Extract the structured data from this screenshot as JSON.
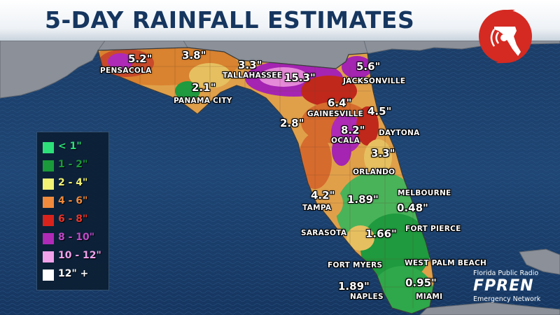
{
  "title": "5-DAY RAINFALL ESTIMATES",
  "colors": {
    "ocean": "#1d3f6a",
    "land_gray": "#8a9099",
    "header_text": "#16365f",
    "rain_green_light": "#2ea84a",
    "rain_green_dark": "#178a34",
    "rain_yellow": "#e3c95a",
    "rain_orange": "#d07a3a",
    "rain_red": "#c0281c",
    "rain_purple": "#a524b2",
    "rain_pink": "#e88ad6"
  },
  "legend": [
    {
      "label": "< 1\"",
      "color": "#2ee07a"
    },
    {
      "label": "1 - 2\"",
      "color": "#1a9a3a"
    },
    {
      "label": "2 - 4\"",
      "color": "#f2f274"
    },
    {
      "label": "4 - 6\"",
      "color": "#f08a3c"
    },
    {
      "label": "6 - 8\"",
      "color": "#d8231c"
    },
    {
      "label": "8 - 10\"",
      "color": "#b02ab8"
    },
    {
      "label": "10 - 12\"",
      "color": "#f1a2ea"
    },
    {
      "label": "12\" +",
      "color": "#ffffff"
    }
  ],
  "rainfall_values": [
    {
      "id": "pensacola",
      "value": "5.2\""
    },
    {
      "id": "n-panhandle",
      "value": "3.8\""
    },
    {
      "id": "tallahassee",
      "value": "3.3\""
    },
    {
      "id": "panama-city",
      "value": "2.1\""
    },
    {
      "id": "big-bend",
      "value": "15.3\""
    },
    {
      "id": "jacksonville",
      "value": "5.6\""
    },
    {
      "id": "gainesville",
      "value": "6.4\""
    },
    {
      "id": "ne-coast",
      "value": "4.5\""
    },
    {
      "id": "cedar-key",
      "value": "2.8\""
    },
    {
      "id": "ocala",
      "value": "8.2\""
    },
    {
      "id": "daytona-south",
      "value": "3.3\""
    },
    {
      "id": "tampa",
      "value": "4.2\""
    },
    {
      "id": "central",
      "value": "1.89\""
    },
    {
      "id": "melbourne",
      "value": "0.48\""
    },
    {
      "id": "fort-pierce",
      "value": "1.66\""
    },
    {
      "id": "naples",
      "value": "1.89\""
    },
    {
      "id": "west-palm",
      "value": "0.95\""
    }
  ],
  "cities": [
    {
      "id": "pensacola",
      "name": "PENSACOLA"
    },
    {
      "id": "tallahassee",
      "name": "TALLAHASSEE"
    },
    {
      "id": "panama-city",
      "name": "PANAMA CITY"
    },
    {
      "id": "jacksonville",
      "name": "JACKSONVILLE"
    },
    {
      "id": "gainesville",
      "name": "GAINESVILLE"
    },
    {
      "id": "daytona",
      "name": "DAYTONA"
    },
    {
      "id": "ocala",
      "name": "OCALA"
    },
    {
      "id": "orlando",
      "name": "ORLANDO"
    },
    {
      "id": "melbourne",
      "name": "MELBOURNE"
    },
    {
      "id": "tampa",
      "name": "TAMPA"
    },
    {
      "id": "sarasota",
      "name": "SARASOTA"
    },
    {
      "id": "fort-pierce",
      "name": "FORT PIERCE"
    },
    {
      "id": "fort-myers",
      "name": "FORT MYERS"
    },
    {
      "id": "west-palm-beach",
      "name": "WEST PALM BEACH"
    },
    {
      "id": "naples",
      "name": "NAPLES"
    },
    {
      "id": "miami",
      "name": "MIAMI"
    }
  ],
  "branding": {
    "network_top": "Florida Public Radio",
    "network_abbr": "FPREN",
    "network_bottom": "Emergency Network",
    "logo_icon": "hurricane-florida-broadcast-icon"
  }
}
